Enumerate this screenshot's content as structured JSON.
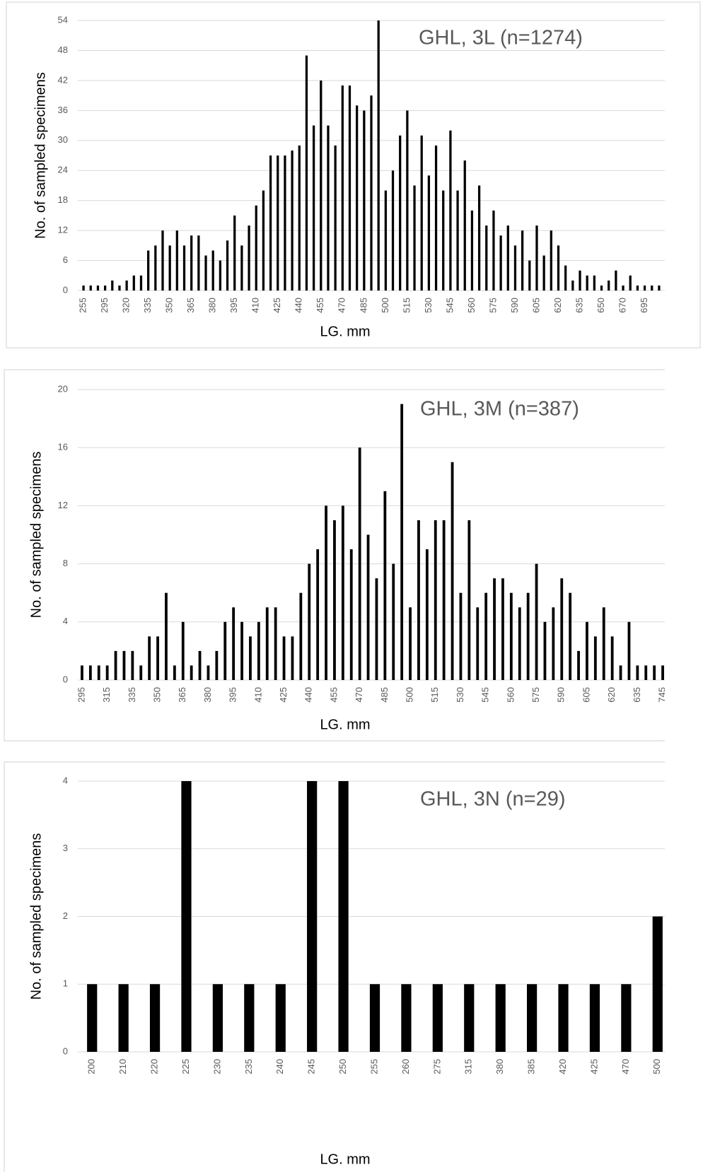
{
  "chart_data": [
    {
      "type": "bar",
      "title": "GHL, 3L (n=1274)",
      "xlabel": "LG. mm",
      "ylabel": "No. of sampled specimens",
      "categories": [
        255,
        null,
        null,
        295,
        null,
        null,
        320,
        null,
        null,
        335,
        null,
        null,
        350,
        null,
        null,
        365,
        null,
        null,
        380,
        null,
        null,
        395,
        null,
        null,
        410,
        null,
        null,
        425,
        null,
        null,
        440,
        null,
        null,
        455,
        null,
        null,
        470,
        null,
        null,
        485,
        null,
        null,
        500,
        null,
        null,
        515,
        null,
        null,
        530,
        null,
        null,
        545,
        null,
        null,
        560,
        null,
        null,
        575,
        null,
        null,
        590,
        null,
        null,
        605,
        null,
        null,
        620,
        null,
        null,
        635,
        null,
        null,
        650,
        null,
        null,
        670,
        null,
        null,
        695,
        null,
        null
      ],
      "values": [
        1,
        1,
        1,
        1,
        2,
        1,
        2,
        3,
        3,
        8,
        9,
        12,
        9,
        12,
        9,
        11,
        11,
        7,
        8,
        6,
        10,
        15,
        9,
        13,
        17,
        20,
        27,
        27,
        27,
        28,
        29,
        47,
        33,
        42,
        33,
        29,
        41,
        41,
        37,
        36,
        39,
        54,
        20,
        24,
        31,
        36,
        21,
        31,
        23,
        29,
        20,
        32,
        20,
        26,
        16,
        21,
        13,
        16,
        11,
        13,
        9,
        12,
        6,
        13,
        7,
        12,
        9,
        5,
        2,
        4,
        3,
        3,
        1,
        2,
        4,
        1,
        3,
        1,
        1,
        1,
        1
      ],
      "color": "#000000",
      "ylim": [
        0,
        54
      ],
      "yticks": [
        0,
        6,
        12,
        18,
        24,
        30,
        36,
        42,
        48,
        54
      ],
      "grid": true
    },
    {
      "type": "bar",
      "title": "GHL, 3M (n=387)",
      "xlabel": "LG. mm",
      "ylabel": "No. of sampled specimens",
      "categories": [
        295,
        null,
        null,
        315,
        null,
        null,
        335,
        null,
        null,
        350,
        null,
        null,
        365,
        null,
        null,
        380,
        null,
        null,
        395,
        null,
        null,
        410,
        null,
        null,
        425,
        null,
        null,
        440,
        null,
        null,
        455,
        null,
        null,
        470,
        null,
        null,
        485,
        null,
        null,
        500,
        null,
        null,
        515,
        null,
        null,
        530,
        null,
        null,
        545,
        null,
        null,
        560,
        null,
        null,
        575,
        null,
        null,
        590,
        null,
        null,
        605,
        null,
        null,
        620,
        null,
        null,
        635,
        null,
        null,
        745
      ],
      "values": [
        1,
        1,
        1,
        1,
        2,
        2,
        2,
        1,
        3,
        3,
        6,
        1,
        4,
        1,
        2,
        1,
        2,
        4,
        5,
        4,
        3,
        4,
        5,
        5,
        3,
        3,
        6,
        8,
        9,
        12,
        11,
        12,
        9,
        16,
        10,
        7,
        13,
        8,
        19,
        5,
        11,
        9,
        11,
        11,
        15,
        6,
        11,
        5,
        6,
        7,
        7,
        6,
        5,
        6,
        8,
        4,
        5,
        7,
        6,
        2,
        4,
        3,
        5,
        3,
        1,
        4,
        1,
        1,
        1,
        1
      ],
      "color": "#000000",
      "ylim": [
        0,
        20
      ],
      "yticks": [
        0,
        4,
        8,
        12,
        16,
        20
      ],
      "grid": true
    },
    {
      "type": "bar",
      "title": "GHL, 3N (n=29)",
      "xlabel": "LG. mm",
      "ylabel": "No. of sampled specimens",
      "categories": [
        200,
        210,
        220,
        225,
        230,
        235,
        240,
        245,
        250,
        255,
        260,
        275,
        315,
        380,
        385,
        420,
        425,
        470,
        500
      ],
      "values": [
        1,
        1,
        1,
        4,
        1,
        1,
        1,
        4,
        4,
        1,
        1,
        1,
        1,
        1,
        1,
        1,
        1,
        1,
        2
      ],
      "color": "#000000",
      "ylim": [
        0,
        4
      ],
      "yticks": [
        0,
        1,
        2,
        3,
        4
      ],
      "grid": true
    }
  ]
}
